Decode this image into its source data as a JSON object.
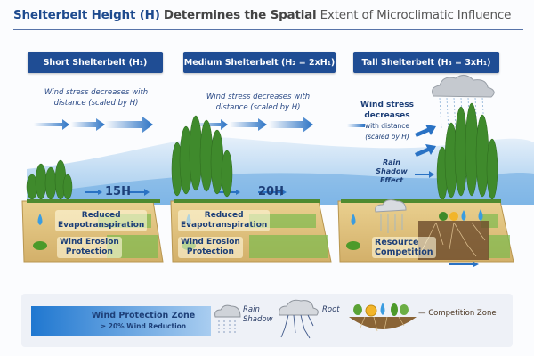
{
  "title": {
    "part1": "Shelterbelt Height (H)",
    "part2": "Determines the Spatial",
    "part3": "Extent of Microclimatic Influence"
  },
  "headers": [
    "Short Shelterbelt (H₁)",
    "Medium Shelterbelt (H₂ = 2xH₁)",
    "Tall Shelterbelt (H₃ = 3xH₁)"
  ],
  "wind_text": {
    "short": [
      "Wind stress decreases with",
      "distance (scaled by H)"
    ],
    "medium": [
      "Wind stress decreases with",
      "distance (scaled by H)"
    ],
    "tall": [
      "Wind stress",
      "decreases",
      "with distance",
      "(scaled by H)"
    ]
  },
  "distances": {
    "short": "15H",
    "medium": "20H"
  },
  "rain_shadow_effect": [
    "Rain Shadow",
    "Effect"
  ],
  "panels": {
    "reduced_et": [
      "Reduced",
      "Evapotranspiration"
    ],
    "erosion": [
      "Wind Erosion",
      "Protection"
    ],
    "competition": [
      "Resource",
      "Competition"
    ]
  },
  "legend": {
    "zone_title": "Wind Protection Zone",
    "zone_sub": "≥ 20% Wind Reduction",
    "rain_shadow": [
      "Rain",
      "Shadow"
    ],
    "root": "Root",
    "competition_zone": "— Competition Zone"
  },
  "colors": {
    "header": "#1f4d94",
    "title_accent": "#1d4a8e",
    "wind": "#2a72c4",
    "tree": "#3f8a2c",
    "soil": "#d9bd7a"
  },
  "icons": [
    "wind-arrow-icon",
    "cloud-rain-icon",
    "tree-icon",
    "water-drop-icon",
    "seedling-icon",
    "root-icon",
    "sun-icon"
  ]
}
